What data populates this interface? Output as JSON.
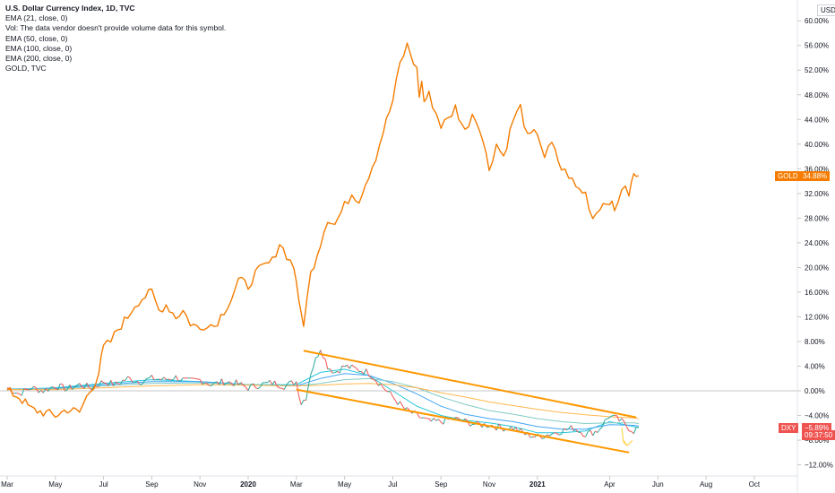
{
  "legend": {
    "title": "U.S. Dollar Currency Index, 1D, TVC",
    "ema21": "EMA (21, close, 0)",
    "vol": "Vol: The data vendor doesn't provide volume data for this symbol.",
    "ema50": "EMA (50, close, 0)",
    "ema100": "EMA (100, close, 0)",
    "ema200": "EMA (200, close, 0)",
    "gold": "GOLD, TVC"
  },
  "currency": "USD",
  "tags": {
    "gold_symbol": "GOLD",
    "gold_value": "34.88%",
    "dxy_symbol": "DXY",
    "dxy_value": "−5.89%",
    "dxy_time": "09:37:50"
  },
  "colors": {
    "gold": "#f57c00",
    "dxy_up": "#26a69a",
    "dxy_down": "#ef5350",
    "ema21": "#26c6da",
    "ema50": "#42a5f5",
    "ema100": "#80cbc4",
    "ema200": "#ffb74d",
    "channel": "#ff9800",
    "arrow": "#ffd54f"
  },
  "chart_data": {
    "type": "line",
    "y_unit": "%",
    "ylim": [
      -14,
      62
    ],
    "y_ticks": [
      "60.00%",
      "56.00%",
      "52.00%",
      "48.00%",
      "44.00%",
      "40.00%",
      "36.00%",
      "32.00%",
      "28.00%",
      "24.00%",
      "20.00%",
      "16.00%",
      "12.00%",
      "8.00%",
      "4.00%",
      "0.00%",
      "−4.00%",
      "−8.00%",
      "−12.00%"
    ],
    "x_ticks": [
      "Mar",
      "May",
      "Jul",
      "Sep",
      "Nov",
      "2020",
      "Mar",
      "May",
      "Jul",
      "Sep",
      "Nov",
      "2021",
      "Apr",
      "Jun",
      "Aug",
      "Oct"
    ],
    "x_tick_bold": [
      false,
      false,
      false,
      false,
      false,
      true,
      false,
      false,
      false,
      false,
      false,
      true,
      false,
      false,
      false,
      false
    ],
    "x_tick_index": [
      0,
      2,
      4,
      6,
      8,
      10,
      12,
      14,
      16,
      18,
      20,
      22,
      25,
      27,
      29,
      31
    ],
    "x_months_total": 34,
    "x_start": "2019-02-15",
    "series": [
      {
        "name": "GOLD, TVC",
        "x_month": [
          0,
          0.5,
          1,
          1.5,
          2,
          2.5,
          3,
          3.3,
          3.6,
          3.8,
          4,
          4.3,
          4.6,
          5,
          5.3,
          5.6,
          6,
          6.3,
          6.6,
          7,
          7.3,
          7.6,
          8,
          8.3,
          8.6,
          9,
          9.3,
          9.6,
          10,
          10.3,
          10.6,
          11,
          11.3,
          11.6,
          11.9,
          12,
          12.1,
          12.3,
          12.6,
          13,
          13.3,
          13.6,
          14,
          14.3,
          14.6,
          15,
          15.3,
          15.6,
          16,
          16.3,
          16.6,
          17,
          17.1,
          17.2,
          17.3,
          17.5,
          17.8,
          18,
          18.3,
          18.6,
          19,
          19.3,
          19.6,
          20,
          20.3,
          20.6,
          21,
          21.3,
          21.6,
          22,
          22.3,
          22.6,
          23,
          23.3,
          23.6,
          24,
          24.3,
          24.6,
          25,
          25.2,
          25.5,
          25.8,
          26,
          26.2
        ],
        "values": [
          0,
          -1,
          -3,
          -3.5,
          -4,
          -3,
          -3.5,
          -1,
          1,
          3,
          7,
          8,
          10,
          12,
          14,
          15,
          16,
          13,
          14,
          12,
          13,
          11,
          10,
          11,
          10.5,
          13,
          15,
          18,
          17,
          19,
          20,
          21,
          24,
          22,
          20,
          18,
          14,
          11,
          19,
          24,
          28,
          27,
          30,
          32,
          31,
          35,
          38,
          42,
          47,
          53,
          56,
          52,
          48,
          50,
          47,
          48,
          45,
          43,
          44,
          46,
          42,
          45,
          43,
          36,
          40,
          38,
          44,
          46,
          41,
          42,
          38,
          40,
          36,
          35,
          33,
          32,
          28,
          30,
          31,
          29,
          33,
          32,
          35,
          34.88
        ]
      },
      {
        "name": "U.S. Dollar Currency Index, 1D, TVC",
        "x_month": [
          0,
          0.5,
          1,
          1.5,
          2,
          2.5,
          3,
          3.5,
          4,
          4.5,
          5,
          5.5,
          6,
          6.5,
          7,
          7.5,
          8,
          8.5,
          9,
          9.5,
          10,
          10.5,
          11,
          11.5,
          12,
          12.2,
          12.4,
          12.6,
          13,
          13.3,
          13.6,
          14,
          14.5,
          15,
          15.5,
          16,
          16.5,
          17,
          17.5,
          18,
          18.5,
          19,
          19.5,
          20,
          20.5,
          21,
          21.5,
          22,
          22.5,
          23,
          23.5,
          24,
          24.5,
          25,
          25.5,
          25.8,
          26,
          26.2
        ],
        "values": [
          0.5,
          -0.5,
          0.5,
          0,
          0.8,
          0.3,
          1,
          0.5,
          1.5,
          1,
          2,
          1.5,
          2,
          1.8,
          2.2,
          1.5,
          1.8,
          1,
          1.5,
          1.2,
          0.5,
          1,
          1.3,
          0.8,
          1.5,
          -2,
          -1,
          3,
          7,
          4,
          3,
          4,
          3.5,
          3,
          1,
          -1,
          -3,
          -4,
          -5,
          -5,
          -4.5,
          -5,
          -5.5,
          -5.5,
          -6,
          -6,
          -7,
          -7.5,
          -7,
          -6.5,
          -6,
          -7,
          -6.5,
          -4,
          -5,
          -6,
          -6.5,
          -5.89
        ]
      },
      {
        "name": "EMA (21, close, 0)",
        "x_month": [
          0,
          2,
          4,
          6,
          8,
          10,
          12,
          13,
          14,
          15,
          16,
          17,
          18,
          19,
          20,
          21,
          22,
          23,
          24,
          25,
          26,
          26.2
        ],
        "values": [
          0.2,
          0.5,
          1.2,
          1.8,
          1.5,
          1,
          1,
          3,
          3.5,
          2.5,
          0,
          -2.5,
          -4,
          -4.8,
          -5.2,
          -5.8,
          -6.8,
          -6.8,
          -6.5,
          -5,
          -5.8,
          -6
        ]
      },
      {
        "name": "EMA (50, close, 0)",
        "x_month": [
          0,
          2,
          4,
          6,
          8,
          10,
          12,
          13,
          14,
          15,
          16,
          17,
          18,
          19,
          20,
          21,
          22,
          23,
          24,
          25,
          26,
          26.2
        ],
        "values": [
          0.3,
          0.4,
          1,
          1.5,
          1.5,
          1,
          0.8,
          2,
          2.8,
          2.5,
          1.2,
          -0.5,
          -2.5,
          -3.8,
          -4.5,
          -5,
          -5.8,
          -6.2,
          -6.2,
          -5.5,
          -5.6,
          -5.7
        ]
      },
      {
        "name": "EMA (100, close, 0)",
        "x_month": [
          0,
          2,
          4,
          6,
          8,
          10,
          12,
          13,
          14,
          15,
          16,
          17,
          18,
          19,
          20,
          21,
          22,
          23,
          24,
          25,
          26,
          26.2
        ],
        "values": [
          0.3,
          0.3,
          0.8,
          1.2,
          1.3,
          1,
          0.8,
          1.2,
          1.8,
          2,
          1.5,
          0.5,
          -1,
          -2.2,
          -3.2,
          -3.8,
          -4.5,
          -5,
          -5.3,
          -5.2,
          -5.2,
          -5.3
        ]
      },
      {
        "name": "EMA (200, close, 0)",
        "x_month": [
          0,
          2,
          4,
          6,
          8,
          10,
          12,
          13,
          14,
          15,
          16,
          17,
          18,
          19,
          20,
          21,
          22,
          23,
          24,
          25,
          26,
          26.2
        ],
        "values": [
          0.2,
          0.2,
          0.5,
          0.8,
          1,
          0.9,
          0.8,
          0.9,
          1.1,
          1.2,
          1,
          0.5,
          -0.3,
          -1,
          -1.8,
          -2.4,
          -3,
          -3.5,
          -3.9,
          -4.2,
          -4.4,
          -4.5
        ]
      }
    ],
    "channel": {
      "upper": {
        "x_month": [
          12.3,
          26.1
        ],
        "values": [
          6.5,
          -4.3
        ]
      },
      "lower": {
        "x_month": [
          12.0,
          25.8
        ],
        "values": [
          0.2,
          -10.0
        ]
      }
    },
    "zero_line": 0
  }
}
